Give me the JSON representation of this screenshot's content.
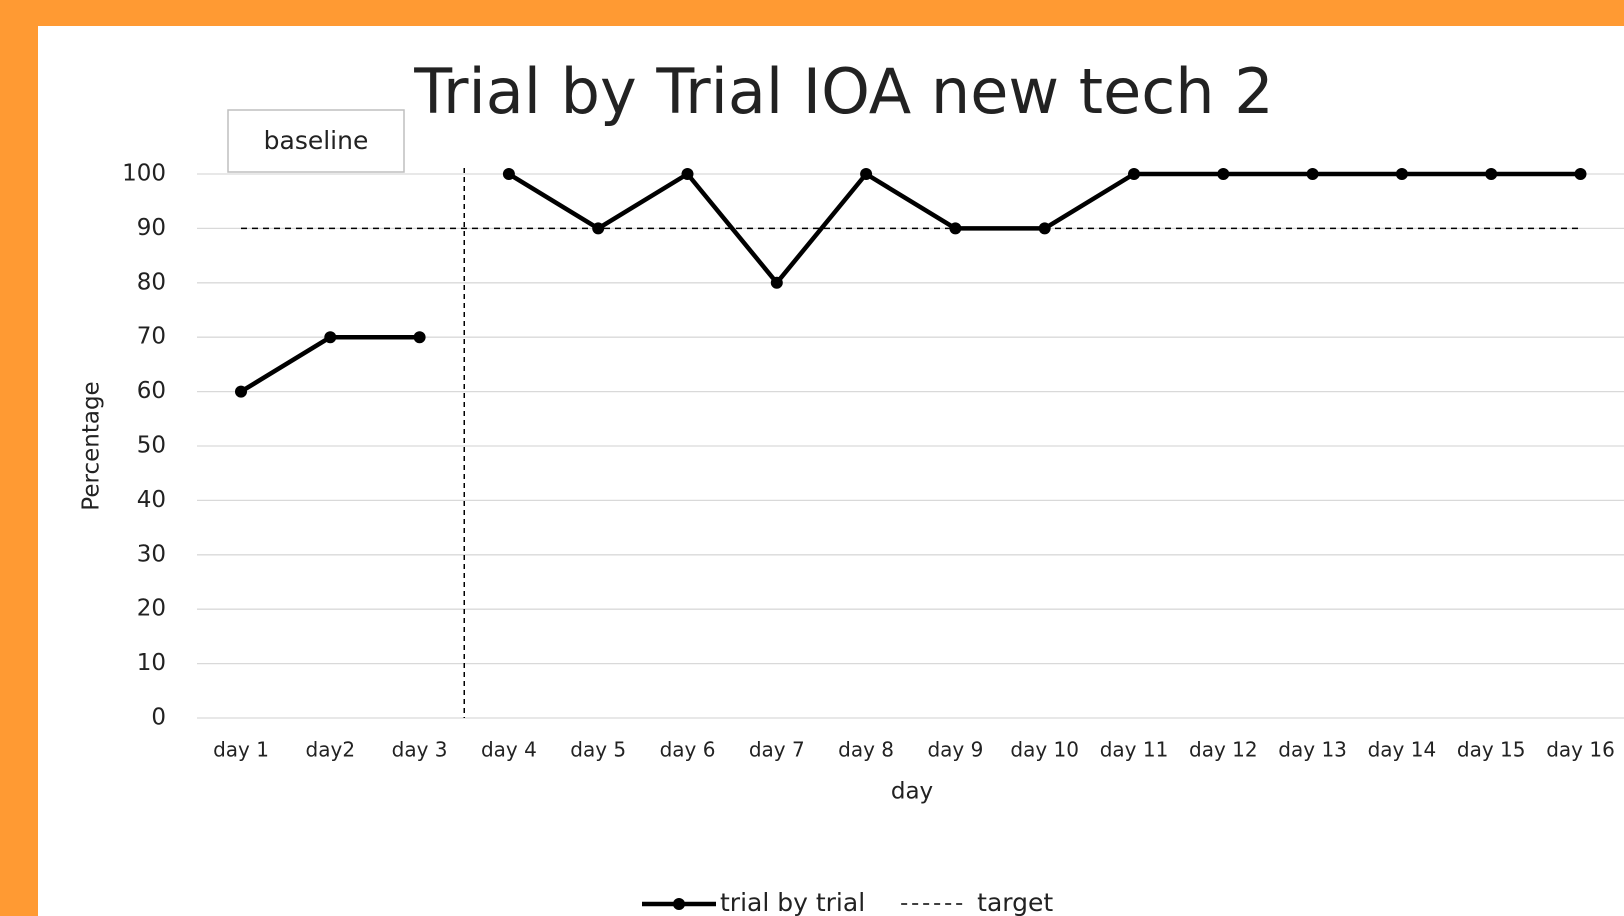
{
  "chart_data": {
    "type": "line",
    "title": "Trial by Trial IOA new tech 2",
    "xlabel": "day",
    "ylabel": "Percentage",
    "categories": [
      "day 1",
      "day2",
      "day 3",
      "day 4",
      "day 5",
      "day 6",
      "day 7",
      "day 8",
      "day 9",
      "day 10",
      "day 11",
      "day 12",
      "day 13",
      "day 14",
      "day 15",
      "day 16"
    ],
    "series": [
      {
        "name": "trial by trial",
        "color": "#000000",
        "style": "solid",
        "markers": true,
        "values": [
          60,
          70,
          70,
          100,
          90,
          100,
          80,
          100,
          90,
          90,
          100,
          100,
          100,
          100,
          100,
          100
        ]
      },
      {
        "name": "target",
        "color": "#000000",
        "style": "dashed",
        "markers": false,
        "values": [
          90,
          90,
          90,
          90,
          90,
          90,
          90,
          90,
          90,
          90,
          90,
          90,
          90,
          90,
          90,
          90
        ]
      }
    ],
    "phase_change": {
      "label": "baseline",
      "after_index": 2
    },
    "ylim": [
      0,
      100
    ],
    "yticks": [
      0,
      10,
      20,
      30,
      40,
      50,
      60,
      70,
      80,
      90,
      100
    ],
    "grid": true,
    "legend": "bottom"
  }
}
